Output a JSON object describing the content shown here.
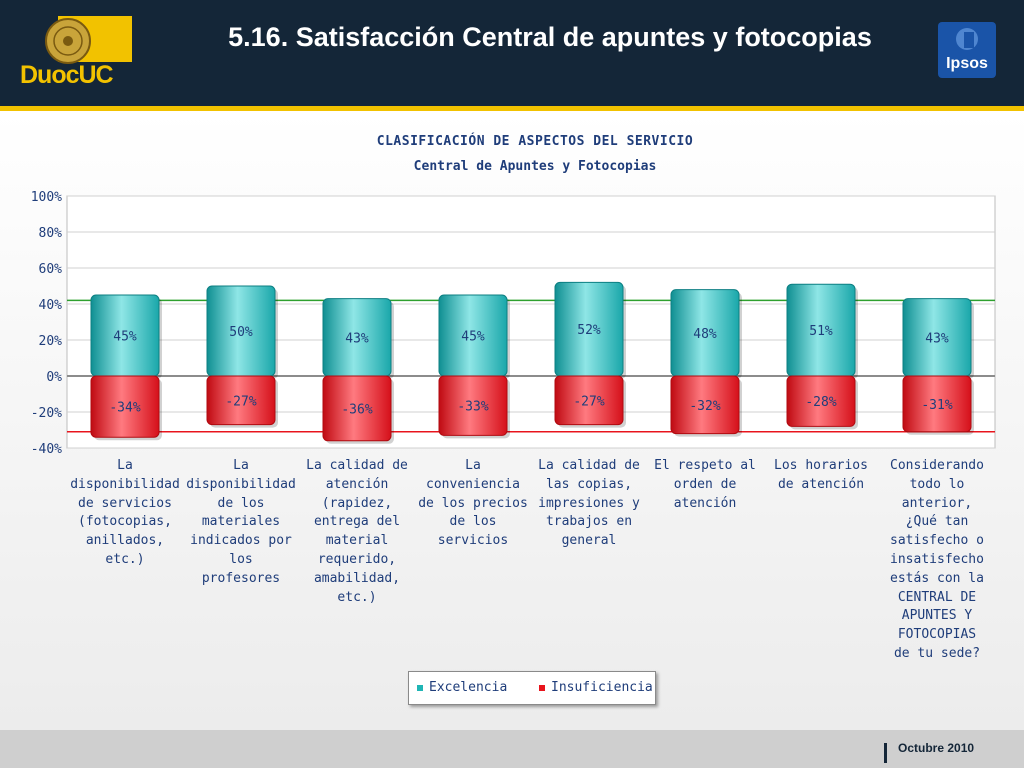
{
  "header": {
    "title": "5.16. Satisfacción Central de apuntes y fotocopias",
    "logo_left_text": "DuocUC",
    "logo_right_text": "Ipsos"
  },
  "footer": {
    "date": "Octubre 2010"
  },
  "colors": {
    "excelencia": "#1fb5b5",
    "insuficiencia": "#e8141c",
    "header_bg": "#142638",
    "accent": "#f2c200"
  },
  "chart_data": {
    "type": "bar",
    "title": "CLASIFICACIÓN DE ASPECTOS DEL SERVICIO",
    "subtitle": "Central de Apuntes y Fotocopias",
    "categories": [
      "La disponibilidad de servicios (fotocopias, anillados, etc.)",
      "La disponibilidad de los materiales indicados por los profesores",
      "La calidad de atención (rapidez, entrega del material requerido, amabilidad, etc.)",
      "La conveniencia de los precios de los servicios",
      "La calidad de las copias, impresiones y trabajos en general",
      "El respeto al orden de atención",
      "Los horarios de atención",
      "Considerando todo lo anterior, ¿Qué tan satisfecho o insatisfecho estás con la CENTRAL DE APUNTES Y FOTOCOPIAS de tu sede?"
    ],
    "category_lines": [
      [
        "La",
        "disponibilidad",
        "de servicios",
        "(fotocopias,",
        "anillados,",
        "etc.)"
      ],
      [
        "La",
        "disponibilidad",
        "de los",
        "materiales",
        "indicados por",
        "los",
        "profesores"
      ],
      [
        "La calidad de",
        "atención",
        "(rapidez,",
        "entrega del",
        "material",
        "requerido,",
        "amabilidad,",
        "etc.)"
      ],
      [
        "La",
        "conveniencia",
        "de los precios",
        "de los",
        "servicios"
      ],
      [
        "La calidad de",
        "las copias,",
        "impresiones y",
        "trabajos en",
        "general"
      ],
      [
        "El respeto al",
        "orden de",
        "atención"
      ],
      [
        "Los horarios",
        "de atención"
      ],
      [
        "Considerando",
        "todo lo",
        "anterior,",
        "¿Qué tan",
        "satisfecho o",
        "insatisfecho",
        "estás con la",
        "CENTRAL DE",
        "APUNTES Y",
        "FOTOCOPIAS",
        "de tu sede?"
      ]
    ],
    "series": [
      {
        "name": "Excelencia",
        "values": [
          45,
          50,
          43,
          45,
          52,
          48,
          51,
          43
        ],
        "labels": [
          "45%",
          "50%",
          "43%",
          "45%",
          "52%",
          "48%",
          "51%",
          "43%"
        ]
      },
      {
        "name": "Insuficiencia",
        "values": [
          -34,
          -27,
          -36,
          -33,
          -27,
          -32,
          -28,
          -31
        ],
        "labels": [
          "-34%",
          "-27%",
          "-36%",
          "-33%",
          "-27%",
          "-32%",
          "-28%",
          "-31%"
        ]
      }
    ],
    "ylim": [
      -40,
      100
    ],
    "yticks": [
      100,
      80,
      60,
      40,
      20,
      0,
      -20,
      -40
    ],
    "ytick_labels": [
      "100%",
      "80%",
      "60%",
      "40%",
      "20%",
      "0%",
      "-20%",
      "-40%"
    ],
    "reference_lines": [
      {
        "value": 42,
        "color": "#2ea02e"
      },
      {
        "value": -31,
        "color": "#e8141c"
      }
    ],
    "grid": true,
    "legend": {
      "position": "bottom",
      "entries": [
        "Excelencia",
        "Insuficiencia"
      ]
    }
  }
}
